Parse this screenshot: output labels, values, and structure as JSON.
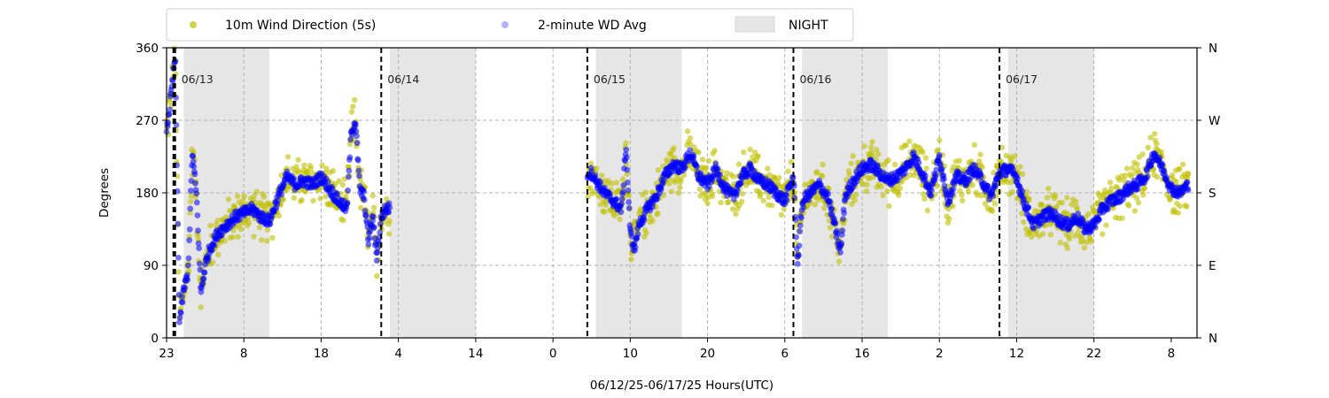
{
  "chart_data": {
    "type": "scatter",
    "xlabel": "06/12/25-06/17/25  Hours(UTC)",
    "ylabel": "Degrees",
    "ylim": [
      0,
      360
    ],
    "yticks": [
      0,
      90,
      180,
      270,
      360
    ],
    "right_tick_labels": [
      "N",
      "E",
      "S",
      "W",
      "N"
    ],
    "x_range_hours": [
      23,
      143
    ],
    "x_tick_labels": [
      "23",
      "8",
      "18",
      "4",
      "14",
      "0",
      "10",
      "20",
      "6",
      "16",
      "2",
      "12",
      "22",
      "8"
    ],
    "grid": true,
    "legend_position": "top-left, above plot",
    "legend": [
      {
        "label": "10m Wind Direction (5s)",
        "color": "#bfbf00",
        "marker": "circle"
      },
      {
        "label": "2-minute WD Avg",
        "color": "#0000ff",
        "marker": "circle"
      },
      {
        "label": "NIGHT",
        "color": "#e6e6e6",
        "marker": "patch"
      }
    ],
    "date_markers": [
      {
        "label": "06/13",
        "hour": 24
      },
      {
        "label": "06/14",
        "hour": 48
      },
      {
        "label": "06/15",
        "hour": 72
      },
      {
        "label": "06/16",
        "hour": 96
      },
      {
        "label": "06/17",
        "hour": 120
      }
    ],
    "night_spans": [
      [
        25,
        35
      ],
      [
        49,
        59
      ],
      [
        73,
        83
      ],
      [
        97,
        107
      ],
      [
        121,
        131
      ]
    ],
    "gaps": [
      [
        49,
        72
      ]
    ],
    "series": [
      {
        "name": "2-minute WD Avg",
        "color": "#0000ff",
        "x": [
          23,
          23.5,
          24,
          24.5,
          25,
          25.5,
          26,
          26.5,
          27,
          27.5,
          28,
          29,
          30,
          31,
          32,
          33,
          34,
          35,
          36,
          37,
          38,
          39,
          40,
          41,
          42,
          43,
          44,
          44.5,
          45,
          45.5,
          46,
          46.5,
          47,
          47.5,
          48,
          48.5,
          72.5,
          73,
          74,
          75,
          76,
          76.5,
          77,
          77.5,
          78,
          79,
          80,
          81,
          82,
          83,
          84,
          85,
          86,
          87,
          88,
          89,
          90,
          91,
          92,
          93,
          94,
          95,
          96,
          96.5,
          97,
          97.5,
          98,
          99,
          100,
          101,
          101.5,
          102,
          103,
          104,
          105,
          106,
          107,
          108,
          109,
          110,
          111,
          112,
          113,
          114,
          115,
          116,
          117,
          118,
          119,
          120,
          121,
          122,
          122.5,
          123,
          124,
          125,
          126,
          127,
          128,
          129,
          130,
          131,
          132,
          133,
          134,
          135,
          136,
          137,
          138,
          139,
          140,
          141,
          142
        ],
        "values": [
          255,
          300,
          350,
          20,
          60,
          80,
          230,
          175,
          55,
          90,
          110,
          130,
          140,
          150,
          155,
          160,
          150,
          145,
          175,
          200,
          190,
          195,
          190,
          200,
          185,
          170,
          160,
          255,
          270,
          185,
          175,
          120,
          150,
          100,
          150,
          160,
          205,
          195,
          180,
          170,
          160,
          240,
          130,
          110,
          140,
          160,
          175,
          200,
          215,
          210,
          230,
          200,
          190,
          210,
          185,
          175,
          200,
          210,
          195,
          190,
          180,
          170,
          200,
          90,
          165,
          175,
          180,
          190,
          175,
          130,
          105,
          175,
          195,
          210,
          215,
          205,
          195,
          200,
          210,
          225,
          205,
          180,
          225,
          170,
          200,
          195,
          210,
          195,
          175,
          205,
          210,
          200,
          180,
          165,
          140,
          150,
          155,
          145,
          140,
          150,
          135,
          140,
          160,
          170,
          175,
          185,
          190,
          200,
          230,
          210,
          185,
          180,
          190
        ]
      },
      {
        "name": "10m Wind Direction (5s)",
        "color": "#bfbf00",
        "x": [
          23,
          23.5,
          24,
          24.5,
          25,
          25.5,
          26,
          26.5,
          27,
          27.5,
          28,
          29,
          30,
          31,
          32,
          33,
          34,
          35,
          36,
          37,
          38,
          39,
          40,
          41,
          42,
          43,
          44,
          44.5,
          45,
          45.5,
          46,
          46.5,
          47,
          47.5,
          48,
          48.5,
          72.5,
          73,
          74,
          75,
          76,
          76.5,
          77,
          77.5,
          78,
          79,
          80,
          81,
          82,
          83,
          84,
          85,
          86,
          87,
          88,
          89,
          90,
          91,
          92,
          93,
          94,
          95,
          96,
          96.5,
          97,
          97.5,
          98,
          99,
          100,
          101,
          101.5,
          102,
          103,
          104,
          105,
          106,
          107,
          108,
          109,
          110,
          111,
          112,
          113,
          114,
          115,
          116,
          117,
          118,
          119,
          120,
          121,
          122,
          122.5,
          123,
          124,
          125,
          126,
          127,
          128,
          129,
          130,
          131,
          132,
          133,
          134,
          135,
          136,
          137,
          138,
          139,
          140,
          141,
          142
        ],
        "values": [
          255,
          300,
          350,
          20,
          60,
          80,
          230,
          175,
          55,
          90,
          110,
          130,
          140,
          150,
          155,
          160,
          150,
          145,
          175,
          200,
          190,
          195,
          190,
          200,
          185,
          170,
          160,
          255,
          270,
          185,
          175,
          120,
          150,
          100,
          150,
          160,
          205,
          195,
          180,
          170,
          160,
          240,
          130,
          110,
          140,
          160,
          175,
          200,
          215,
          210,
          230,
          200,
          190,
          210,
          185,
          175,
          200,
          210,
          195,
          190,
          180,
          170,
          200,
          90,
          165,
          175,
          180,
          190,
          175,
          130,
          105,
          175,
          195,
          210,
          215,
          205,
          195,
          200,
          210,
          225,
          205,
          180,
          225,
          170,
          200,
          195,
          210,
          195,
          175,
          205,
          210,
          200,
          180,
          165,
          140,
          150,
          155,
          145,
          140,
          150,
          135,
          140,
          160,
          170,
          175,
          185,
          190,
          200,
          230,
          210,
          185,
          180,
          190
        ],
        "spread_deg": 30
      }
    ]
  }
}
